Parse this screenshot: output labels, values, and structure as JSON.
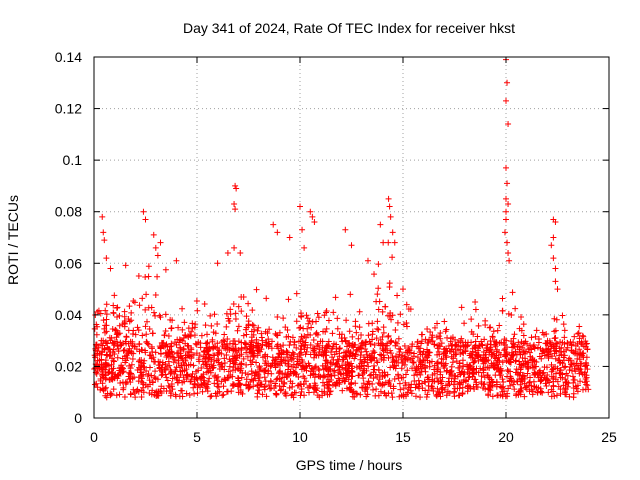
{
  "chart_data": {
    "type": "scatter",
    "title": "Day 341 of 2024, Rate Of TEC Index for receiver hkst",
    "xlabel": "GPS time / hours",
    "ylabel": "ROTI / TECUs",
    "xlim": [
      0,
      25
    ],
    "ylim": [
      0,
      0.14
    ],
    "x_ticks": [
      0,
      5,
      10,
      15,
      20,
      25
    ],
    "x_tick_labels": [
      "0",
      "5",
      "10",
      "15",
      "20",
      "25"
    ],
    "y_ticks": [
      0,
      0.02,
      0.04,
      0.06,
      0.08,
      0.1,
      0.12,
      0.14
    ],
    "y_tick_labels": [
      "0",
      "0.02",
      "0.04",
      "0.06",
      "0.08",
      "0.1",
      "0.12",
      "0.14"
    ],
    "grid": true,
    "marker": "+",
    "series": [
      {
        "name": "ROTI",
        "color": "#ff0000",
        "x_range": [
          0,
          24
        ],
        "base_band": [
          0.008,
          0.03
        ],
        "points": [
          {
            "x": 0.4,
            "y": 0.078
          },
          {
            "x": 0.45,
            "y": 0.072
          },
          {
            "x": 0.5,
            "y": 0.069
          },
          {
            "x": 0.6,
            "y": 0.062
          },
          {
            "x": 0.8,
            "y": 0.058
          },
          {
            "x": 2.4,
            "y": 0.08
          },
          {
            "x": 2.5,
            "y": 0.077
          },
          {
            "x": 2.9,
            "y": 0.071
          },
          {
            "x": 3.0,
            "y": 0.066
          },
          {
            "x": 3.1,
            "y": 0.063
          },
          {
            "x": 4.0,
            "y": 0.061
          },
          {
            "x": 6.0,
            "y": 0.06
          },
          {
            "x": 6.5,
            "y": 0.064
          },
          {
            "x": 6.85,
            "y": 0.09
          },
          {
            "x": 6.9,
            "y": 0.089
          },
          {
            "x": 6.8,
            "y": 0.083
          },
          {
            "x": 6.85,
            "y": 0.081
          },
          {
            "x": 6.8,
            "y": 0.066
          },
          {
            "x": 7.1,
            "y": 0.064
          },
          {
            "x": 8.7,
            "y": 0.075
          },
          {
            "x": 8.9,
            "y": 0.072
          },
          {
            "x": 9.5,
            "y": 0.07
          },
          {
            "x": 10.0,
            "y": 0.082
          },
          {
            "x": 10.1,
            "y": 0.073
          },
          {
            "x": 10.2,
            "y": 0.066
          },
          {
            "x": 10.5,
            "y": 0.08
          },
          {
            "x": 10.6,
            "y": 0.078
          },
          {
            "x": 10.7,
            "y": 0.076
          },
          {
            "x": 12.2,
            "y": 0.073
          },
          {
            "x": 12.5,
            "y": 0.067
          },
          {
            "x": 13.3,
            "y": 0.061
          },
          {
            "x": 13.9,
            "y": 0.075
          },
          {
            "x": 14.3,
            "y": 0.085
          },
          {
            "x": 14.35,
            "y": 0.082
          },
          {
            "x": 14.4,
            "y": 0.078
          },
          {
            "x": 14.5,
            "y": 0.072
          },
          {
            "x": 14.6,
            "y": 0.068
          },
          {
            "x": 15.0,
            "y": 0.05
          },
          {
            "x": 18.5,
            "y": 0.045
          },
          {
            "x": 20.0,
            "y": 0.139
          },
          {
            "x": 20.05,
            "y": 0.13
          },
          {
            "x": 20.0,
            "y": 0.123
          },
          {
            "x": 20.1,
            "y": 0.114
          },
          {
            "x": 20.0,
            "y": 0.097
          },
          {
            "x": 20.05,
            "y": 0.091
          },
          {
            "x": 20.0,
            "y": 0.085
          },
          {
            "x": 20.1,
            "y": 0.083
          },
          {
            "x": 20.0,
            "y": 0.08
          },
          {
            "x": 20.0,
            "y": 0.077
          },
          {
            "x": 19.95,
            "y": 0.072
          },
          {
            "x": 20.05,
            "y": 0.068
          },
          {
            "x": 20.1,
            "y": 0.064
          },
          {
            "x": 20.15,
            "y": 0.061
          },
          {
            "x": 22.3,
            "y": 0.077
          },
          {
            "x": 22.4,
            "y": 0.076
          },
          {
            "x": 22.3,
            "y": 0.07
          },
          {
            "x": 22.2,
            "y": 0.067
          },
          {
            "x": 22.3,
            "y": 0.062
          },
          {
            "x": 22.4,
            "y": 0.058
          },
          {
            "x": 22.4,
            "y": 0.053
          },
          {
            "x": 22.5,
            "y": 0.05
          }
        ]
      }
    ]
  }
}
